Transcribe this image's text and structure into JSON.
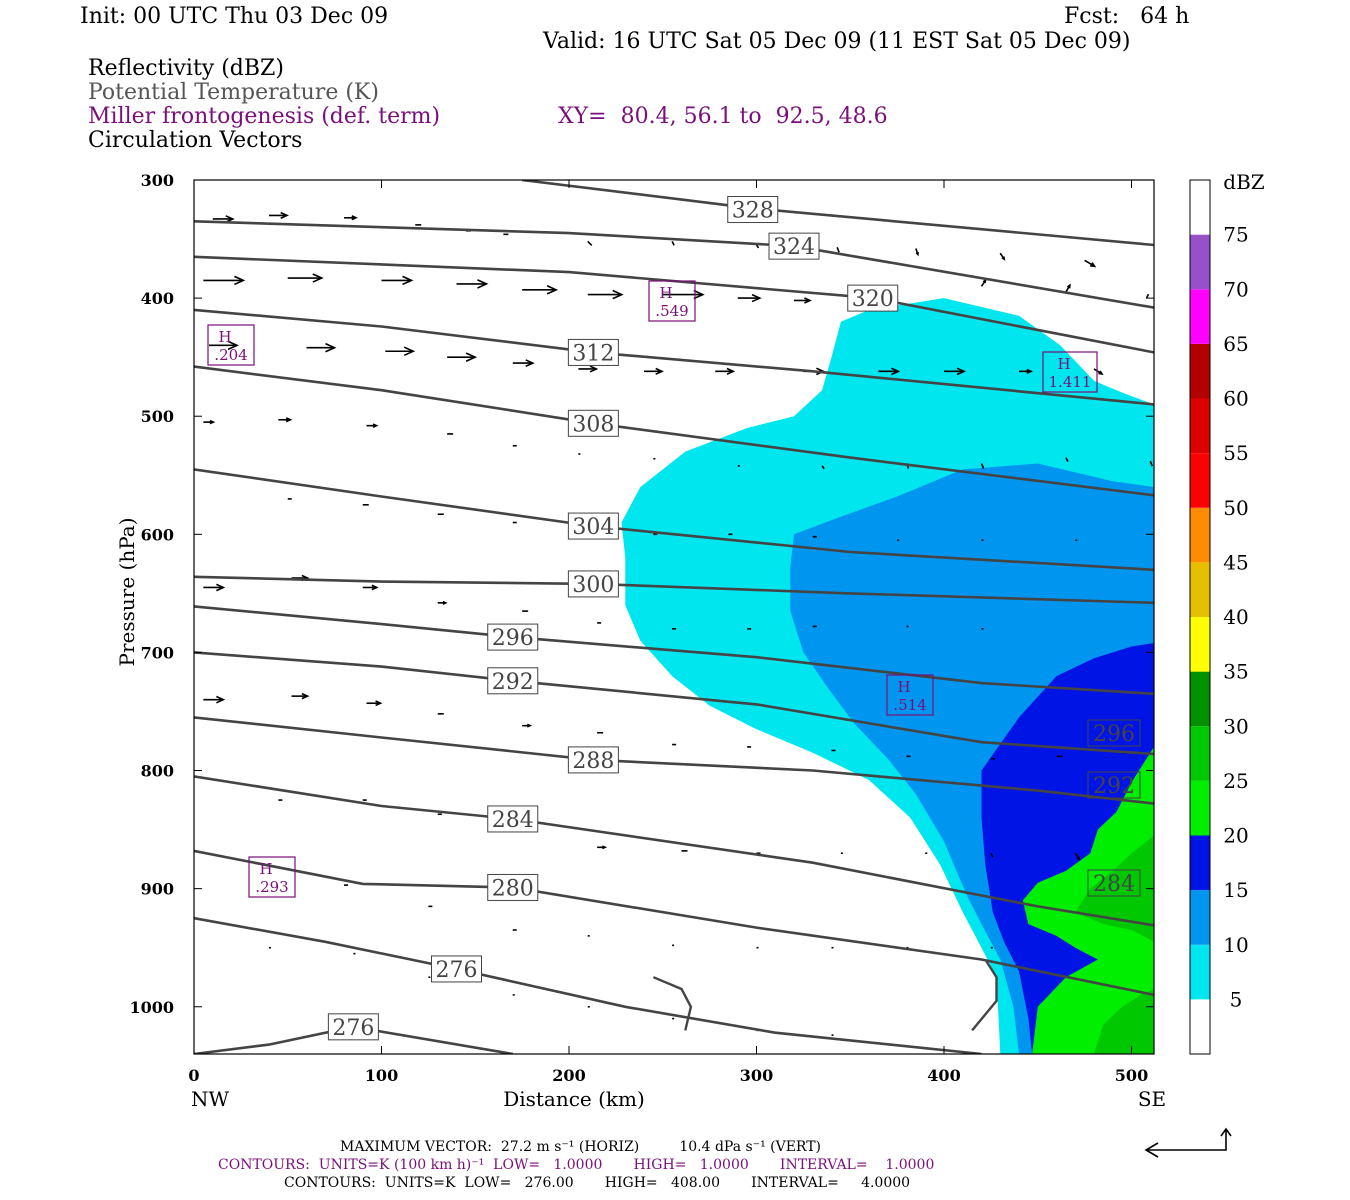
{
  "header": {
    "init": "Init: 00 UTC Thu 03 Dec 09",
    "fcst": "Fcst:   64 h",
    "valid": "Valid: 16 UTC Sat 05 Dec 09 (11 EST Sat 05 Dec 09)"
  },
  "fields": {
    "reflectivity": "Reflectivity (dBZ)",
    "theta": "Potential Temperature (K)",
    "miller": "Miller frontogenesis (def. term)",
    "xy": "XY=  80.4, 56.1 to  92.5, 48.6",
    "vectors": "Circulation Vectors"
  },
  "colors": {
    "theta": "#444444",
    "miller": "#7a0f7a",
    "c5": "#00e6ee",
    "c10": "#0096f0",
    "c15": "#0014e6",
    "c20": "#00ee00",
    "c25": "#00c800",
    "c30": "#009000"
  },
  "footer": {
    "max_vector": "MAXIMUM VECTOR:  27.2 m s⁻¹ (HORIZ)         10.4 dPa s⁻¹ (VERT)",
    "contours1": "CONTOURS:  UNITS=K (100 km h)⁻¹  LOW=   1.0000       HIGH=   1.0000       INTERVAL=    1.0000",
    "contours2": "CONTOURS:  UNITS=K  LOW=   276.00       HIGH=   408.00       INTERVAL=     4.0000"
  },
  "chart_data": {
    "type": "contour",
    "xlabel": "Distance (km)",
    "ylabel": "Pressure (hPa)",
    "x_left": "NW",
    "x_right": "SE",
    "xlim": [
      0,
      512
    ],
    "ylim": [
      300,
      1040
    ],
    "x_ticks": [
      0,
      100,
      200,
      300,
      400,
      500
    ],
    "y_ticks": [
      300,
      400,
      500,
      600,
      700,
      800,
      900,
      1000
    ],
    "colorbar": {
      "unit": "dBZ",
      "levels": [
        5,
        10,
        15,
        20,
        25,
        30,
        35,
        40,
        45,
        50,
        55,
        60,
        65,
        70,
        75
      ],
      "colors": [
        "#ffffff",
        "#00e6ee",
        "#0096f0",
        "#0014e6",
        "#00ee00",
        "#00c800",
        "#009000",
        "#ffff00",
        "#e6c000",
        "#ff8c00",
        "#ff0000",
        "#dc0000",
        "#b40000",
        "#ff00ff",
        "#9650c8",
        "#ffffff"
      ]
    },
    "theta_lines": [
      {
        "label": "328",
        "label_pos": [
          298,
          325
        ],
        "points": [
          [
            175,
            300
          ],
          [
            298,
            324
          ],
          [
            512,
            355
          ]
        ]
      },
      {
        "label": "324",
        "label_pos": [
          320,
          356
        ],
        "points": [
          [
            0,
            335
          ],
          [
            200,
            345
          ],
          [
            320,
            356
          ],
          [
            512,
            408
          ]
        ]
      },
      {
        "label": "320",
        "label_pos": [
          362,
          400
        ],
        "points": [
          [
            0,
            365
          ],
          [
            200,
            378
          ],
          [
            362,
            400
          ],
          [
            512,
            446
          ]
        ]
      },
      {
        "label": "312",
        "label_pos": [
          213,
          446
        ],
        "points": [
          [
            0,
            410
          ],
          [
            100,
            424
          ],
          [
            213,
            446
          ],
          [
            330,
            462
          ],
          [
            512,
            490
          ]
        ]
      },
      {
        "label": "308",
        "label_pos": [
          213,
          506
        ],
        "points": [
          [
            0,
            458
          ],
          [
            100,
            478
          ],
          [
            213,
            506
          ],
          [
            350,
            535
          ],
          [
            512,
            567
          ]
        ]
      },
      {
        "label": "304",
        "label_pos": [
          213,
          593
        ],
        "points": [
          [
            0,
            545
          ],
          [
            100,
            568
          ],
          [
            213,
            593
          ],
          [
            350,
            615
          ],
          [
            512,
            630
          ]
        ]
      },
      {
        "label": "300",
        "label_pos": [
          213,
          642
        ],
        "points": [
          [
            0,
            636
          ],
          [
            100,
            640
          ],
          [
            213,
            642
          ],
          [
            350,
            650
          ],
          [
            512,
            658
          ]
        ]
      },
      {
        "label": "296",
        "label_pos": [
          170,
          687
        ],
        "points": [
          [
            0,
            661
          ],
          [
            100,
            676
          ],
          [
            170,
            687
          ],
          [
            300,
            704
          ],
          [
            420,
            726
          ],
          [
            512,
            735
          ]
        ]
      },
      {
        "label": "292",
        "label_pos": [
          170,
          724
        ],
        "points": [
          [
            0,
            700
          ],
          [
            100,
            712
          ],
          [
            170,
            724
          ],
          [
            300,
            744
          ],
          [
            420,
            776
          ],
          [
            512,
            786
          ]
        ]
      },
      {
        "label": "288",
        "label_pos": [
          213,
          791
        ],
        "points": [
          [
            0,
            755
          ],
          [
            100,
            772
          ],
          [
            213,
            791
          ],
          [
            330,
            800
          ],
          [
            450,
            817
          ],
          [
            512,
            828
          ]
        ]
      },
      {
        "label": "284",
        "label_pos": [
          170,
          841
        ],
        "points": [
          [
            0,
            805
          ],
          [
            100,
            830
          ],
          [
            170,
            841
          ],
          [
            330,
            878
          ],
          [
            450,
            915
          ],
          [
            512,
            931
          ]
        ]
      },
      {
        "label": "280",
        "label_pos": [
          170,
          899
        ],
        "points": [
          [
            0,
            868
          ],
          [
            90,
            896
          ],
          [
            170,
            899
          ],
          [
            300,
            933
          ],
          [
            420,
            960
          ],
          [
            512,
            990
          ]
        ]
      },
      {
        "label": "276",
        "label_pos": [
          140,
          968
        ],
        "points": [
          [
            0,
            925
          ],
          [
            70,
            945
          ],
          [
            140,
            968
          ],
          [
            230,
            1000
          ],
          [
            310,
            1022
          ],
          [
            420,
            1040
          ]
        ]
      },
      {
        "label": "276",
        "label_pos": [
          85,
          1017
        ],
        "points": [
          [
            0,
            1040
          ],
          [
            40,
            1032
          ],
          [
            85,
            1017
          ],
          [
            170,
            1040
          ]
        ]
      }
    ],
    "theta_labels_right": [
      "296",
      "292",
      "284"
    ],
    "frontogenesis_maxima": [
      {
        "label": "H",
        "value": ".204"
      },
      {
        "label": "H",
        "value": ".549"
      },
      {
        "label": "H",
        "value": "1.411"
      },
      {
        "label": "H",
        "value": ".514"
      },
      {
        "label": "H",
        "value": ".293"
      }
    ]
  }
}
